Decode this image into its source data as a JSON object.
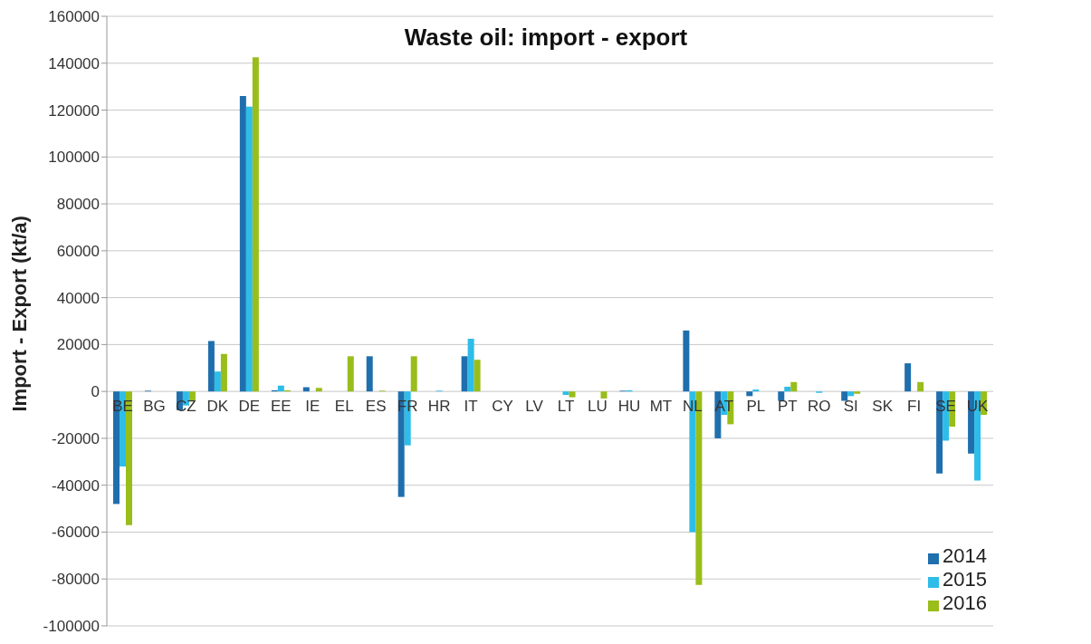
{
  "chart_data": {
    "type": "bar",
    "title": "Waste oil: import - export",
    "ylabel": "Import - Export (kt/a)",
    "categories": [
      "BE",
      "BG",
      "CZ",
      "DK",
      "DE",
      "EE",
      "IE",
      "EL",
      "ES",
      "FR",
      "HR",
      "IT",
      "CY",
      "LV",
      "LT",
      "LU",
      "HU",
      "MT",
      "NL",
      "AT",
      "PL",
      "PT",
      "RO",
      "SI",
      "SK",
      "FI",
      "SE",
      "UK"
    ],
    "series": [
      {
        "name": "2014",
        "color": "#1f6fad",
        "values": [
          -48000,
          300,
          -8000,
          21500,
          126000,
          500,
          1800,
          0,
          15000,
          -45000,
          0,
          15000,
          0,
          0,
          0,
          0,
          300,
          0,
          26000,
          -20000,
          -2000,
          -4000,
          0,
          -4000,
          0,
          12000,
          -35000,
          -26500
        ]
      },
      {
        "name": "2015",
        "color": "#2ebde8",
        "values": [
          -32000,
          null,
          -6000,
          8500,
          121500,
          2500,
          0,
          0,
          0,
          -23000,
          300,
          22500,
          0,
          0,
          -1500,
          0,
          500,
          0,
          -60000,
          -10000,
          800,
          2000,
          -600,
          -2000,
          0,
          0,
          -21000,
          -38000
        ]
      },
      {
        "name": "2016",
        "color": "#99bd1a",
        "values": [
          -57000,
          0,
          -4000,
          16000,
          142500,
          500,
          1500,
          15000,
          300,
          15000,
          0,
          13500,
          0,
          0,
          -2500,
          -3000,
          0,
          0,
          -82500,
          -14000,
          0,
          4000,
          0,
          -1000,
          0,
          4000,
          -15000,
          -10000
        ]
      }
    ],
    "ylim": [
      -100000,
      160000
    ],
    "yticks": [
      -100000,
      -80000,
      -60000,
      -40000,
      -20000,
      0,
      20000,
      40000,
      60000,
      80000,
      100000,
      120000,
      140000,
      160000
    ],
    "grid": "y",
    "legend": "bottom right"
  }
}
